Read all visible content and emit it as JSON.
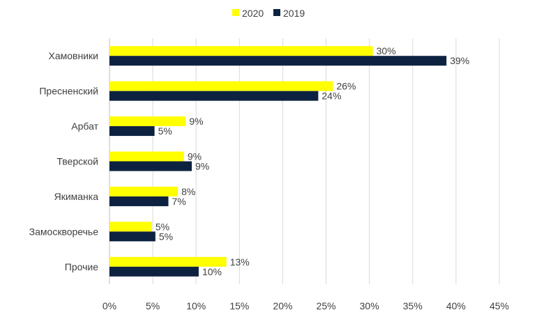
{
  "chart_data": {
    "type": "bar",
    "orientation": "horizontal",
    "title": "",
    "xlabel": "",
    "ylabel": "",
    "categories": [
      "Хамовники",
      "Пресненский",
      "Арбат",
      "Тверской",
      "Якиманка",
      "Замоскворечье",
      "Прочие"
    ],
    "series": [
      {
        "name": "2020",
        "color": "#ffff00",
        "values": [
          30.4,
          25.8,
          8.8,
          8.6,
          7.9,
          4.9,
          13.5
        ],
        "labels": [
          "30%",
          "26%",
          "9%",
          "9%",
          "8%",
          "5%",
          "13%"
        ]
      },
      {
        "name": "2019",
        "color": "#0d2240",
        "values": [
          38.9,
          24.1,
          5.2,
          9.5,
          6.8,
          5.3,
          10.3
        ],
        "labels": [
          "39%",
          "24%",
          "5%",
          "9%",
          "7%",
          "5%",
          "10%"
        ]
      }
    ],
    "xlim": [
      0,
      45
    ],
    "x_ticks": [
      0,
      5,
      10,
      15,
      20,
      25,
      30,
      35,
      40,
      45
    ],
    "x_tick_labels": [
      "0%",
      "5%",
      "10%",
      "15%",
      "20%",
      "25%",
      "30%",
      "35%",
      "40%",
      "45%"
    ],
    "grid": "vertical",
    "legend_position": "top-center"
  }
}
